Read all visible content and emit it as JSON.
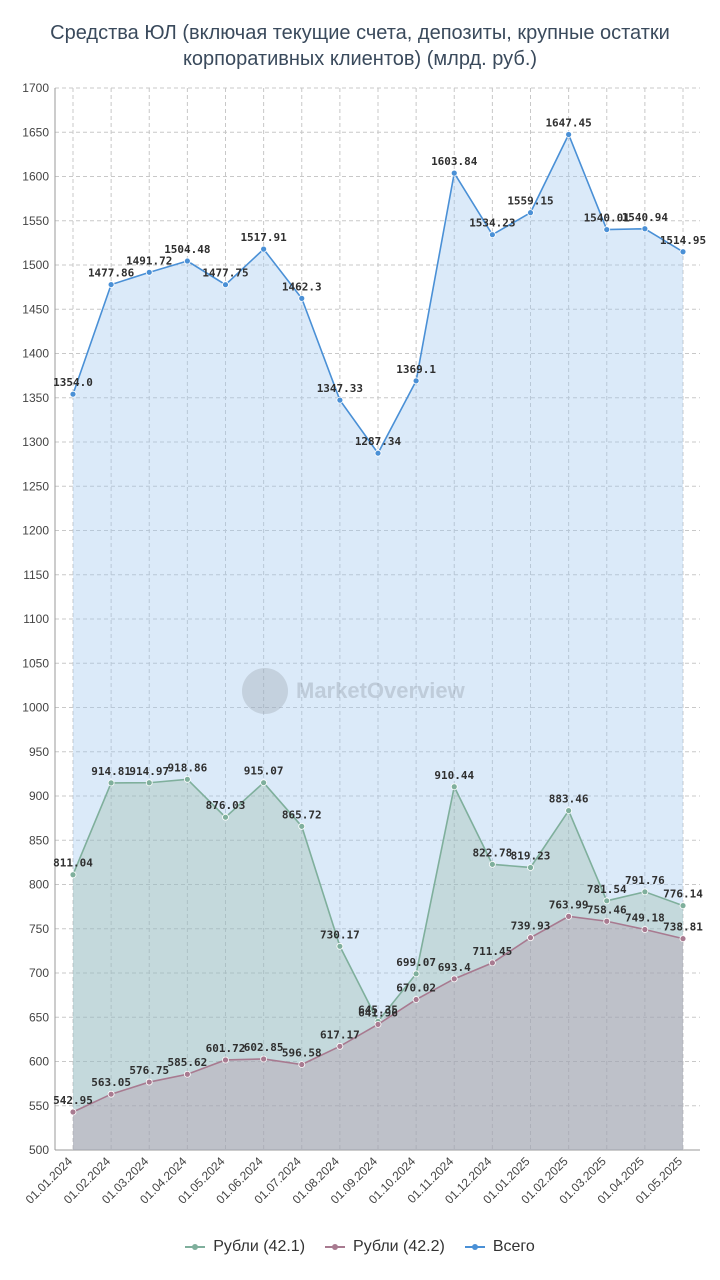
{
  "title_line1": "Средства ЮЛ (включая текущие счета, депозиты, крупные остатки",
  "title_line2": "корпоративных клиентов) (млрд. руб.)",
  "watermark": "MarketOverview",
  "chart_data": {
    "type": "area",
    "categories": [
      "01.01.2024",
      "01.02.2024",
      "01.03.2024",
      "01.04.2024",
      "01.05.2024",
      "01.06.2024",
      "01.07.2024",
      "01.08.2024",
      "01.09.2024",
      "01.10.2024",
      "01.11.2024",
      "01.12.2024",
      "01.01.2025",
      "01.02.2025",
      "01.03.2025",
      "01.04.2025",
      "01.05.2025"
    ],
    "ylim": [
      500,
      1700
    ],
    "yticks": [
      500,
      550,
      600,
      650,
      700,
      750,
      800,
      850,
      900,
      950,
      1000,
      1050,
      1100,
      1150,
      1200,
      1250,
      1300,
      1350,
      1400,
      1450,
      1500,
      1550,
      1600,
      1650,
      1700
    ],
    "grid": true,
    "legend_position": "bottom",
    "series": [
      {
        "name": "Рубли (42.1)",
        "color": "#7faf9c",
        "values": [
          811.04,
          914.81,
          914.97,
          918.86,
          876.03,
          915.07,
          865.72,
          730.17,
          645.35,
          699.07,
          910.44,
          822.78,
          819.23,
          883.46,
          781.54,
          791.76,
          776.14
        ],
        "labels": [
          "811.04",
          "914.81",
          "914.97",
          "918.86",
          "876.03",
          "915.07",
          "865.72",
          "730.17",
          "645.35",
          "699.07",
          "910.44",
          "822.78",
          "819.23",
          "883.46",
          "781.54",
          "791.76",
          "776.14"
        ]
      },
      {
        "name": "Рубли (42.2)",
        "color": "#a87a90",
        "values": [
          542.95,
          563.05,
          576.75,
          585.62,
          601.72,
          602.85,
          596.58,
          617.17,
          641.96,
          670.02,
          693.4,
          711.45,
          739.93,
          763.99,
          758.46,
          749.18,
          738.81
        ],
        "labels": [
          "542.95",
          "563.05",
          "576.75",
          "585.62",
          "601.72",
          "602.85",
          "596.58",
          "617.17",
          "641.96",
          "670.02",
          "693.4",
          "711.45",
          "739.93",
          "763.99",
          "758.46",
          "749.18",
          "738.81"
        ]
      },
      {
        "name": "Всего",
        "color": "#4a90d6",
        "values": [
          1354.0,
          1477.86,
          1491.72,
          1504.48,
          1477.75,
          1517.91,
          1462.3,
          1347.33,
          1287.34,
          1369.1,
          1603.84,
          1534.23,
          1559.15,
          1647.45,
          1540.01,
          1540.94,
          1514.95
        ],
        "labels": [
          "1354.0",
          "1477.86",
          "1491.72",
          "1504.48",
          "1477.75",
          "1517.91",
          "1462.3",
          "1347.33",
          "1287.34",
          "1369.1",
          "1603.84",
          "1534.23",
          "1559.15",
          "1647.45",
          "1540.01",
          "1540.94",
          "1514.95"
        ]
      }
    ]
  }
}
